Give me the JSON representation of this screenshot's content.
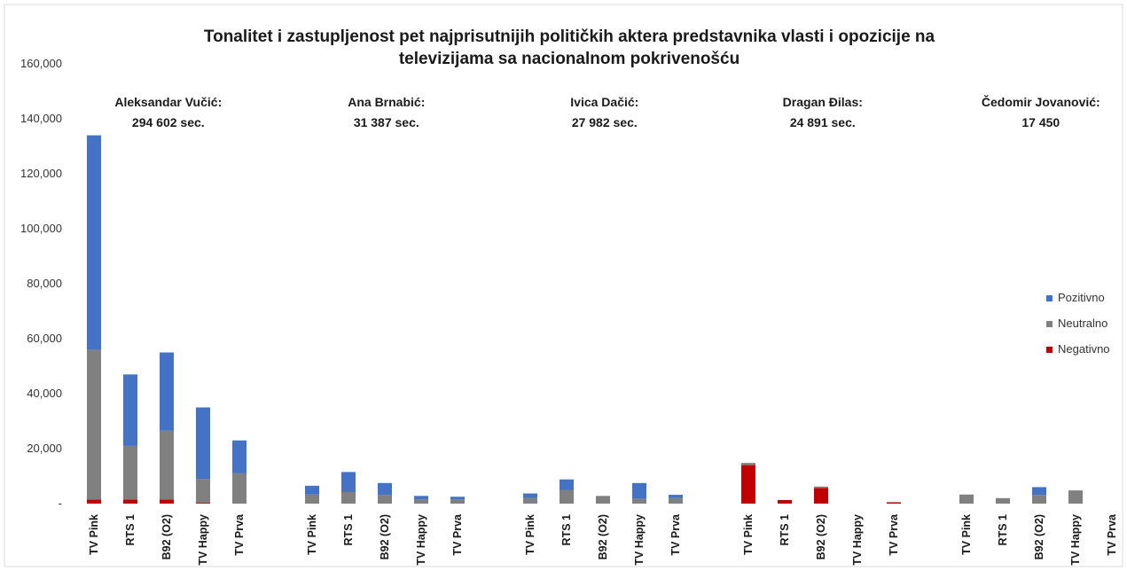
{
  "chart_data": {
    "type": "bar",
    "stacked": true,
    "title_lines": [
      "Tonalitet i zastupljenost pet najprisutnijih političkih aktera predstavnika vlasti i opozicije na",
      "televizijama sa nacionalnom pokrivenošću"
    ],
    "ylim": [
      0,
      160000
    ],
    "yticks": [
      0,
      20000,
      40000,
      60000,
      80000,
      100000,
      120000,
      140000,
      160000
    ],
    "ytick_labels": [
      "-",
      "20,000",
      "40,000",
      "60,000",
      "80,000",
      "100,000",
      "120,000",
      "140,000",
      "160,000"
    ],
    "grid": false,
    "legend_position": "right",
    "series_colors": {
      "Pozitivno": "#4472c4",
      "Neutralno": "#808080",
      "Negativno": "#c00000"
    },
    "stack_order": [
      "Negativno",
      "Neutralno",
      "Pozitivno"
    ],
    "legend_order": [
      "Pozitivno",
      "Neutralno",
      "Negativno"
    ],
    "groups": [
      {
        "annotation": [
          "Aleksandar Vučić:",
          "294 602 sec."
        ],
        "bars": [
          {
            "category": "TV Pink",
            "Negativno": 1500,
            "Neutralno": 54500,
            "Pozitivno": 78000
          },
          {
            "category": "RTS 1",
            "Negativno": 1500,
            "Neutralno": 19500,
            "Pozitivno": 26000
          },
          {
            "category": "B92 (O2)",
            "Negativno": 1500,
            "Neutralno": 25000,
            "Pozitivno": 28500
          },
          {
            "category": "TV Happy",
            "Negativno": 300,
            "Neutralno": 8700,
            "Pozitivno": 26000
          },
          {
            "category": "TV Prva",
            "Negativno": 0,
            "Neutralno": 11000,
            "Pozitivno": 12000
          }
        ]
      },
      {
        "annotation": [
          "Ana Brnabić:",
          "31 387 sec."
        ],
        "bars": [
          {
            "category": "TV Pink",
            "Negativno": 0,
            "Neutralno": 3300,
            "Pozitivno": 3200
          },
          {
            "category": "RTS 1",
            "Negativno": 0,
            "Neutralno": 4200,
            "Pozitivno": 7300
          },
          {
            "category": "B92 (O2)",
            "Negativno": 0,
            "Neutralno": 3200,
            "Pozitivno": 4300
          },
          {
            "category": "TV Happy",
            "Negativno": 0,
            "Neutralno": 1500,
            "Pozitivno": 1300
          },
          {
            "category": "TV Prva",
            "Negativno": 0,
            "Neutralno": 1500,
            "Pozitivno": 1000
          }
        ]
      },
      {
        "annotation": [
          "Ivica Dačić:",
          "27 982 sec."
        ],
        "bars": [
          {
            "category": "TV Pink",
            "Negativno": 0,
            "Neutralno": 2000,
            "Pozitivno": 1700
          },
          {
            "category": "RTS 1",
            "Negativno": 0,
            "Neutralno": 5000,
            "Pozitivno": 3800
          },
          {
            "category": "B92 (O2)",
            "Negativno": 0,
            "Neutralno": 2800,
            "Pozitivno": 0
          },
          {
            "category": "TV Happy",
            "Negativno": 0,
            "Neutralno": 1800,
            "Pozitivno": 5700
          },
          {
            "category": "TV Prva",
            "Negativno": 0,
            "Neutralno": 2000,
            "Pozitivno": 1200
          }
        ]
      },
      {
        "annotation": [
          "Dragan Đilas:",
          "24 891 sec."
        ],
        "bars": [
          {
            "category": "TV Pink",
            "Negativno": 14000,
            "Neutralno": 800,
            "Pozitivno": 0
          },
          {
            "category": "RTS 1",
            "Negativno": 1300,
            "Neutralno": 0,
            "Pozitivno": 0
          },
          {
            "category": "B92 (O2)",
            "Negativno": 5700,
            "Neutralno": 500,
            "Pozitivno": 0
          },
          {
            "category": "TV Happy",
            "Negativno": 0,
            "Neutralno": 0,
            "Pozitivno": 0
          },
          {
            "category": "TV Prva",
            "Negativno": 500,
            "Neutralno": 0,
            "Pozitivno": 0
          }
        ]
      },
      {
        "annotation": [
          "Čedomir Jovanović:",
          "17 450"
        ],
        "bars": [
          {
            "category": "TV Pink",
            "Negativno": 0,
            "Neutralno": 3300,
            "Pozitivno": 0
          },
          {
            "category": "RTS 1",
            "Negativno": 0,
            "Neutralno": 2000,
            "Pozitivno": 0
          },
          {
            "category": "B92 (O2)",
            "Negativno": 0,
            "Neutralno": 3200,
            "Pozitivno": 2800
          },
          {
            "category": "TV Happy",
            "Negativno": 0,
            "Neutralno": 4800,
            "Pozitivno": 0
          },
          {
            "category": "TV Prva",
            "Negativno": 0,
            "Neutralno": 0,
            "Pozitivno": 0
          }
        ]
      }
    ]
  }
}
